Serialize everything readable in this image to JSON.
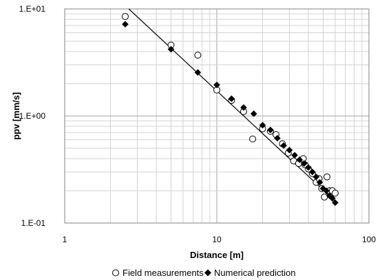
{
  "chart_data": {
    "type": "scatter",
    "title": "",
    "xlabel": "Distance [m]",
    "ylabel": "ppv [mm/s]",
    "xscale": "log",
    "yscale": "log",
    "xlim": [
      1,
      100
    ],
    "ylim": [
      0.1,
      10
    ],
    "x_tick_labels": [
      "1",
      "10",
      "100"
    ],
    "y_tick_labels": [
      "1.E-01",
      "1.E+00",
      "1.E+01"
    ],
    "grid": "major and minor",
    "legend_position": "bottom",
    "series": [
      {
        "name": "Field measurements",
        "marker": "open-circle",
        "color": "#000000",
        "points": [
          [
            2.5,
            8.5
          ],
          [
            5.0,
            4.6
          ],
          [
            7.5,
            3.7
          ],
          [
            10.0,
            1.75
          ],
          [
            12.5,
            1.4
          ],
          [
            15.0,
            1.1
          ],
          [
            17.2,
            0.61
          ],
          [
            20.0,
            0.76
          ],
          [
            22.5,
            0.72
          ],
          [
            24.5,
            0.67
          ],
          [
            27.0,
            0.55
          ],
          [
            29.5,
            0.45
          ],
          [
            32.0,
            0.38
          ],
          [
            34.5,
            0.36
          ],
          [
            37.0,
            0.4
          ],
          [
            38.0,
            0.35
          ],
          [
            40.0,
            0.32
          ],
          [
            42.5,
            0.29
          ],
          [
            45.0,
            0.24
          ],
          [
            47.0,
            0.26
          ],
          [
            49.0,
            0.21
          ],
          [
            51.0,
            0.175
          ],
          [
            53.0,
            0.27
          ],
          [
            55.0,
            0.2
          ],
          [
            57.5,
            0.2
          ],
          [
            60.0,
            0.19
          ]
        ]
      },
      {
        "name": "Numerical prediction",
        "marker": "filled-diamond",
        "color": "#000000",
        "points": [
          [
            2.5,
            7.2
          ],
          [
            5.0,
            4.2
          ],
          [
            7.5,
            2.55
          ],
          [
            10.0,
            1.95
          ],
          [
            12.5,
            1.45
          ],
          [
            15.0,
            1.2
          ],
          [
            17.5,
            1.05
          ],
          [
            20.0,
            0.82
          ],
          [
            22.5,
            0.74
          ],
          [
            25.0,
            0.62
          ],
          [
            27.5,
            0.53
          ],
          [
            30.0,
            0.48
          ],
          [
            32.5,
            0.43
          ],
          [
            35.0,
            0.39
          ],
          [
            37.5,
            0.36
          ],
          [
            40.0,
            0.33
          ],
          [
            42.5,
            0.3
          ],
          [
            45.0,
            0.27
          ],
          [
            47.5,
            0.24
          ],
          [
            50.0,
            0.21
          ],
          [
            52.5,
            0.2
          ],
          [
            55.0,
            0.18
          ],
          [
            57.5,
            0.17
          ],
          [
            60.0,
            0.155
          ]
        ]
      }
    ],
    "trendline": {
      "color": "#000000",
      "points": [
        [
          2.3,
          12.0
        ],
        [
          60.0,
          0.16
        ]
      ]
    }
  }
}
